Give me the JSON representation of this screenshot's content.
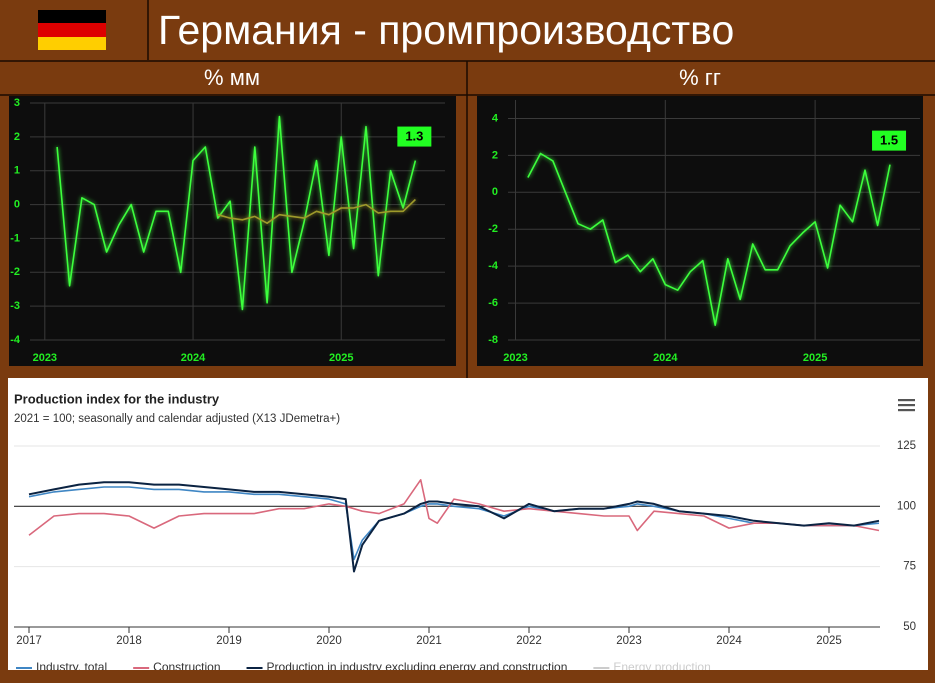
{
  "header": {
    "title": "Германия - промпроизводство"
  },
  "chart_data": [
    {
      "type": "line",
      "title": "% мм",
      "x": [
        2023.083,
        2023.167,
        2023.25,
        2023.333,
        2023.417,
        2023.5,
        2023.583,
        2023.667,
        2023.75,
        2023.833,
        2023.917,
        2024,
        2024.083,
        2024.167,
        2024.25,
        2024.333,
        2024.417,
        2024.5,
        2024.583,
        2024.667,
        2024.75,
        2024.833,
        2024.917,
        2025,
        2025.083,
        2025.167,
        2025.25,
        2025.333,
        2025.417,
        2025.5
      ],
      "series": [
        {
          "color": "#3cff3c",
          "values": [
            1.7,
            -2.4,
            0.2,
            0,
            -1.4,
            -0.6,
            0,
            -1.4,
            -0.2,
            -0.2,
            -2.0,
            1.3,
            1.7,
            -0.4,
            0.1,
            -3.1,
            1.7,
            -2.9,
            2.6,
            -2.0,
            -0.5,
            1.3,
            -1.5,
            2.0,
            -1.3,
            2.3,
            -2.1,
            1.0,
            -0.1,
            1.3
          ]
        },
        {
          "color": "#9e9a2a",
          "values": [
            null,
            null,
            null,
            null,
            null,
            null,
            null,
            null,
            null,
            null,
            null,
            null,
            null,
            -0.3,
            -0.4,
            -0.45,
            -0.35,
            -0.55,
            -0.3,
            -0.35,
            -0.4,
            -0.2,
            -0.3,
            -0.1,
            -0.1,
            0,
            -0.25,
            -0.2,
            -0.2,
            0.15
          ]
        }
      ],
      "xlim": [
        2022.9,
        2025.7
      ],
      "xticks": [
        2023,
        2024,
        2025
      ],
      "ylim": [
        -4,
        3
      ],
      "yticks": [
        -4,
        -3,
        -2,
        -1,
        0,
        1,
        2,
        3
      ],
      "grid": true
    },
    {
      "type": "line",
      "title": "% гг",
      "x": [
        2023.083,
        2023.167,
        2023.25,
        2023.333,
        2023.417,
        2023.5,
        2023.583,
        2023.667,
        2023.75,
        2023.833,
        2023.917,
        2024,
        2024.083,
        2024.167,
        2024.25,
        2024.333,
        2024.417,
        2024.5,
        2024.583,
        2024.667,
        2024.75,
        2024.833,
        2024.917,
        2025,
        2025.083,
        2025.167,
        2025.25,
        2025.333,
        2025.417,
        2025.5
      ],
      "series": [
        {
          "color": "#3cff3c",
          "values": [
            0.8,
            2.1,
            1.7,
            0,
            -1.7,
            -2.0,
            -1.5,
            -3.8,
            -3.4,
            -4.3,
            -3.6,
            -5.0,
            -5.3,
            -4.3,
            -3.7,
            -7.2,
            -3.6,
            -5.8,
            -2.8,
            -4.2,
            -4.2,
            -2.9,
            -2.2,
            -1.6,
            -4.1,
            -0.7,
            -1.6,
            1.2,
            -1.8,
            1.5
          ]
        }
      ],
      "xlim": [
        2022.95,
        2025.7
      ],
      "xticks": [
        2023,
        2024,
        2025
      ],
      "ylim": [
        -8,
        5
      ],
      "yticks": [
        -8,
        -6,
        -4,
        -2,
        0,
        2,
        4
      ],
      "grid": true
    },
    {
      "type": "line",
      "title": "Production index for the industry",
      "subtitle": "2021 = 100; seasonally and calendar adjusted (X13 JDemetra+)",
      "x": [
        2017,
        2017.25,
        2017.5,
        2017.75,
        2018,
        2018.25,
        2018.5,
        2018.75,
        2019,
        2019.25,
        2019.5,
        2019.75,
        2020,
        2020.167,
        2020.25,
        2020.333,
        2020.5,
        2020.75,
        2020.917,
        2021,
        2021.083,
        2021.25,
        2021.5,
        2021.75,
        2022,
        2022.25,
        2022.5,
        2022.75,
        2023,
        2023.083,
        2023.25,
        2023.5,
        2023.75,
        2024,
        2024.25,
        2024.5,
        2024.75,
        2025,
        2025.25,
        2025.5
      ],
      "series": [
        {
          "name": "Industry, total",
          "color": "#3f86c4",
          "values": [
            104,
            106,
            107,
            108,
            108,
            107,
            107,
            106,
            106,
            105,
            105,
            104,
            103,
            101,
            78,
            86,
            94,
            97,
            100,
            101,
            101,
            100,
            99,
            96,
            100,
            98,
            99,
            99,
            100,
            101,
            100,
            98,
            97,
            95,
            93,
            93,
            92,
            92,
            92,
            93
          ]
        },
        {
          "name": "Construction",
          "color": "#d9687c",
          "values": [
            88,
            96,
            97,
            97,
            96,
            91,
            96,
            97,
            97,
            97,
            99,
            99,
            101,
            100,
            99,
            98,
            97,
            101,
            111,
            95,
            93,
            103,
            101,
            98,
            99,
            98,
            97,
            96,
            96,
            90,
            98,
            97,
            96,
            91,
            93,
            93,
            92,
            92,
            92,
            90
          ]
        },
        {
          "name": "Production in industry excluding energy and construction",
          "color": "#0b2342",
          "values": [
            105,
            107,
            109,
            110,
            110,
            109,
            109,
            108,
            107,
            106,
            106,
            105,
            104,
            103,
            73,
            84,
            94,
            97,
            101,
            102,
            102,
            101,
            100,
            95,
            101,
            98,
            99,
            99,
            101,
            102,
            101,
            98,
            97,
            96,
            94,
            93,
            92,
            93,
            92,
            94
          ]
        }
      ],
      "hidden_series": [
        {
          "name": "Energy production",
          "color": "#cccccc"
        }
      ],
      "reference_line": 100,
      "xlim": [
        2016.85,
        2025.51
      ],
      "xticks": [
        2017,
        2018,
        2019,
        2020,
        2021,
        2022,
        2023,
        2024,
        2025
      ],
      "ylim": [
        50,
        125
      ],
      "yticks": [
        50,
        75,
        100,
        125
      ],
      "grid": true,
      "legend": "bottom"
    }
  ]
}
